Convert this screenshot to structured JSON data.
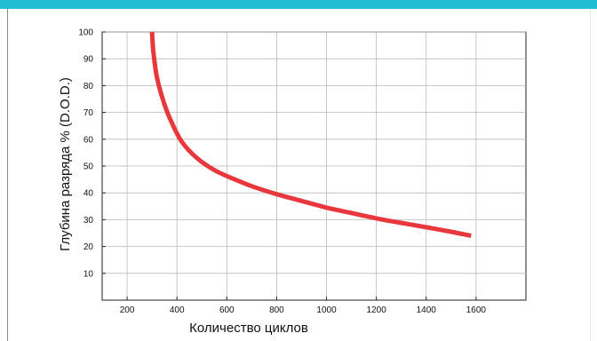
{
  "chart_data": {
    "type": "line",
    "title": "",
    "xlabel": "Количество циклов",
    "ylabel": "Глубина разряда % (D.O.D.)",
    "xlim": [
      100,
      1800
    ],
    "ylim": [
      0,
      100
    ],
    "x_ticks": [
      200,
      400,
      600,
      800,
      1000,
      1200,
      1400,
      1600
    ],
    "y_ticks": [
      10,
      20,
      30,
      40,
      50,
      60,
      70,
      80,
      90,
      100
    ],
    "x_tick_labels": [
      "200",
      "400",
      "600",
      "800",
      "1000",
      "1200",
      "1400",
      "1600"
    ],
    "y_tick_labels": [
      "10",
      "20",
      "30",
      "40",
      "50",
      "60",
      "70",
      "80",
      "90",
      "100"
    ],
    "grid": true,
    "series": [
      {
        "color": "#e8383d",
        "x": [
          300,
          305,
          320,
          350,
          380,
          420,
          480,
          550,
          620,
          700,
          800,
          900,
          1000,
          1100,
          1200,
          1300,
          1400,
          1500,
          1580
        ],
        "y": [
          100,
          93,
          83,
          73,
          66,
          59,
          53,
          48.5,
          45.5,
          42.5,
          39.5,
          37,
          34.5,
          32.5,
          30.5,
          28.8,
          27.2,
          25.5,
          24
        ]
      }
    ]
  }
}
